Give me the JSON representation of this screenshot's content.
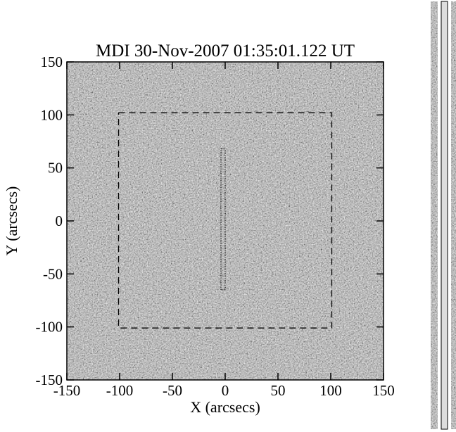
{
  "chart_data": {
    "type": "image",
    "title": "MDI 30-Nov-2007 01:35:01.122 UT",
    "xlabel": "X (arcsecs)",
    "ylabel": "Y (arcsecs)",
    "xlim": [
      -150,
      150
    ],
    "ylim": [
      -150,
      150
    ],
    "xticks": [
      -150,
      -100,
      -50,
      0,
      50,
      100,
      150
    ],
    "yticks": [
      -150,
      -100,
      -50,
      0,
      50,
      100,
      150
    ],
    "regions": [
      {
        "x": [
          -101,
          101
        ],
        "y": [
          -101,
          102
        ],
        "style": "dashed"
      },
      {
        "x": [
          -4,
          0
        ],
        "y": [
          -65,
          68
        ],
        "style": "dotted"
      }
    ]
  }
}
